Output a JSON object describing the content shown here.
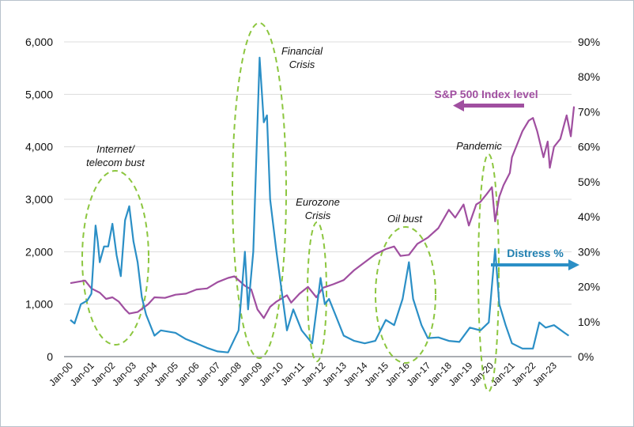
{
  "chart_data": {
    "type": "line",
    "left_axis": {
      "ticks": [
        "0",
        "1,000",
        "2,000",
        "3,000",
        "4,000",
        "5,000",
        "6,000"
      ],
      "range": [
        0,
        6000
      ]
    },
    "right_axis": {
      "ticks": [
        "0%",
        "10%",
        "20%",
        "30%",
        "40%",
        "50%",
        "60%",
        "70%",
        "80%",
        "90%"
      ],
      "range": [
        0,
        90
      ]
    },
    "x_ticks": [
      "Jan-00",
      "Jan-01",
      "Jan-02",
      "Jan-03",
      "Jan-04",
      "Jan-05",
      "Jan-06",
      "Jan-07",
      "Jan-08",
      "Jan-09",
      "Jan-10",
      "Jan-11",
      "Jan-12",
      "Jan-13",
      "Jan-14",
      "Jan-15",
      "Jan-16",
      "Jan-17",
      "Jan-18",
      "Jan-19",
      "Jan-20",
      "Jan-21",
      "Jan-22",
      "Jan-23"
    ],
    "grid": true,
    "series": [
      {
        "name": "S&P 500 Index level",
        "axis": "left",
        "color": "#a04fa0",
        "x": [
          2000,
          2000.7,
          2001,
          2001.4,
          2001.7,
          2002,
          2002.3,
          2002.6,
          2002.8,
          2003.2,
          2003.7,
          2004,
          2004.5,
          2005,
          2005.5,
          2006,
          2006.5,
          2007,
          2007.5,
          2007.8,
          2008.3,
          2008.6,
          2008.9,
          2009.2,
          2009.5,
          2009.8,
          2010.3,
          2010.5,
          2010.9,
          2011.3,
          2011.7,
          2012,
          2012.5,
          2013,
          2013.5,
          2014,
          2014.5,
          2015,
          2015.4,
          2015.7,
          2016.1,
          2016.5,
          2017,
          2017.5,
          2018,
          2018.3,
          2018.7,
          2018.95,
          2019.3,
          2019.5,
          2019.8,
          2020.05,
          2020.2,
          2020.4,
          2020.6,
          2020.9,
          2021,
          2021.3,
          2021.5,
          2021.8,
          2022,
          2022.2,
          2022.5,
          2022.7,
          2022.8,
          2023,
          2023.3,
          2023.5,
          2023.6,
          2023.8,
          2023.95
        ],
        "y": [
          1400,
          1450,
          1300,
          1220,
          1100,
          1130,
          1050,
          900,
          820,
          850,
          1000,
          1130,
          1120,
          1180,
          1200,
          1280,
          1300,
          1420,
          1500,
          1530,
          1350,
          1280,
          900,
          735,
          950,
          1050,
          1170,
          1030,
          1200,
          1330,
          1130,
          1310,
          1380,
          1460,
          1650,
          1800,
          1950,
          2050,
          2100,
          1920,
          1940,
          2150,
          2270,
          2450,
          2800,
          2650,
          2900,
          2500,
          2900,
          2950,
          3100,
          3230,
          2580,
          3050,
          3270,
          3500,
          3800,
          4100,
          4300,
          4500,
          4550,
          4300,
          3800,
          4100,
          3600,
          4000,
          4150,
          4450,
          4600,
          4200,
          4770
        ]
      },
      {
        "name": "Distress %",
        "axis": "right",
        "color": "#2b8fc6",
        "x": [
          2000,
          2000.2,
          2000.5,
          2000.8,
          2001,
          2001.2,
          2001.3,
          2001.4,
          2001.6,
          2001.8,
          2002,
          2002.2,
          2002.4,
          2002.6,
          2002.8,
          2003,
          2003.2,
          2003.4,
          2003.6,
          2004,
          2004.3,
          2005,
          2005.5,
          2006,
          2006.5,
          2007,
          2007.5,
          2008,
          2008.3,
          2008.45,
          2008.7,
          2009,
          2009.2,
          2009.35,
          2009.5,
          2009.8,
          2010,
          2010.3,
          2010.6,
          2011,
          2011.5,
          2011.9,
          2012.1,
          2012.3,
          2012.6,
          2013,
          2013.5,
          2014,
          2014.5,
          2015,
          2015.4,
          2015.8,
          2016.1,
          2016.3,
          2016.7,
          2017,
          2017.5,
          2018,
          2018.5,
          2019,
          2019.5,
          2019.9,
          2020.2,
          2020.4,
          2020.7,
          2021,
          2021.5,
          2022,
          2022.3,
          2022.6,
          2023,
          2023.5,
          2023.7
        ],
        "y": [
          10.5,
          9.5,
          15,
          16,
          18,
          37.5,
          33,
          27,
          31.5,
          31.5,
          38,
          29,
          23,
          39,
          43,
          33,
          27,
          17,
          12,
          6,
          7.5,
          6.8,
          5,
          3.8,
          2.5,
          1.5,
          1.2,
          7.5,
          30,
          13.5,
          30,
          85.5,
          67,
          69,
          45,
          30,
          21,
          7.5,
          13.5,
          7.5,
          3.8,
          22.5,
          15,
          16.5,
          12,
          6,
          4.5,
          3.8,
          4.5,
          10.5,
          9,
          16.5,
          27,
          16.5,
          9,
          5.3,
          5.5,
          4.5,
          4.2,
          8.3,
          7.5,
          9.8,
          30.8,
          15,
          9,
          3.8,
          2.3,
          2.3,
          9.8,
          8.3,
          9,
          6.8,
          6
        ]
      }
    ],
    "annotations": {
      "internet": [
        "Internet/",
        "telecom bust"
      ],
      "financial": [
        "Financial",
        "Crisis"
      ],
      "eurozone": [
        "Eurozone",
        "Crisis"
      ],
      "oil": "Oil bust",
      "pandemic": "Pandemic",
      "sp_label": "S&P 500 Index level",
      "distress_label": "Distress %"
    }
  }
}
